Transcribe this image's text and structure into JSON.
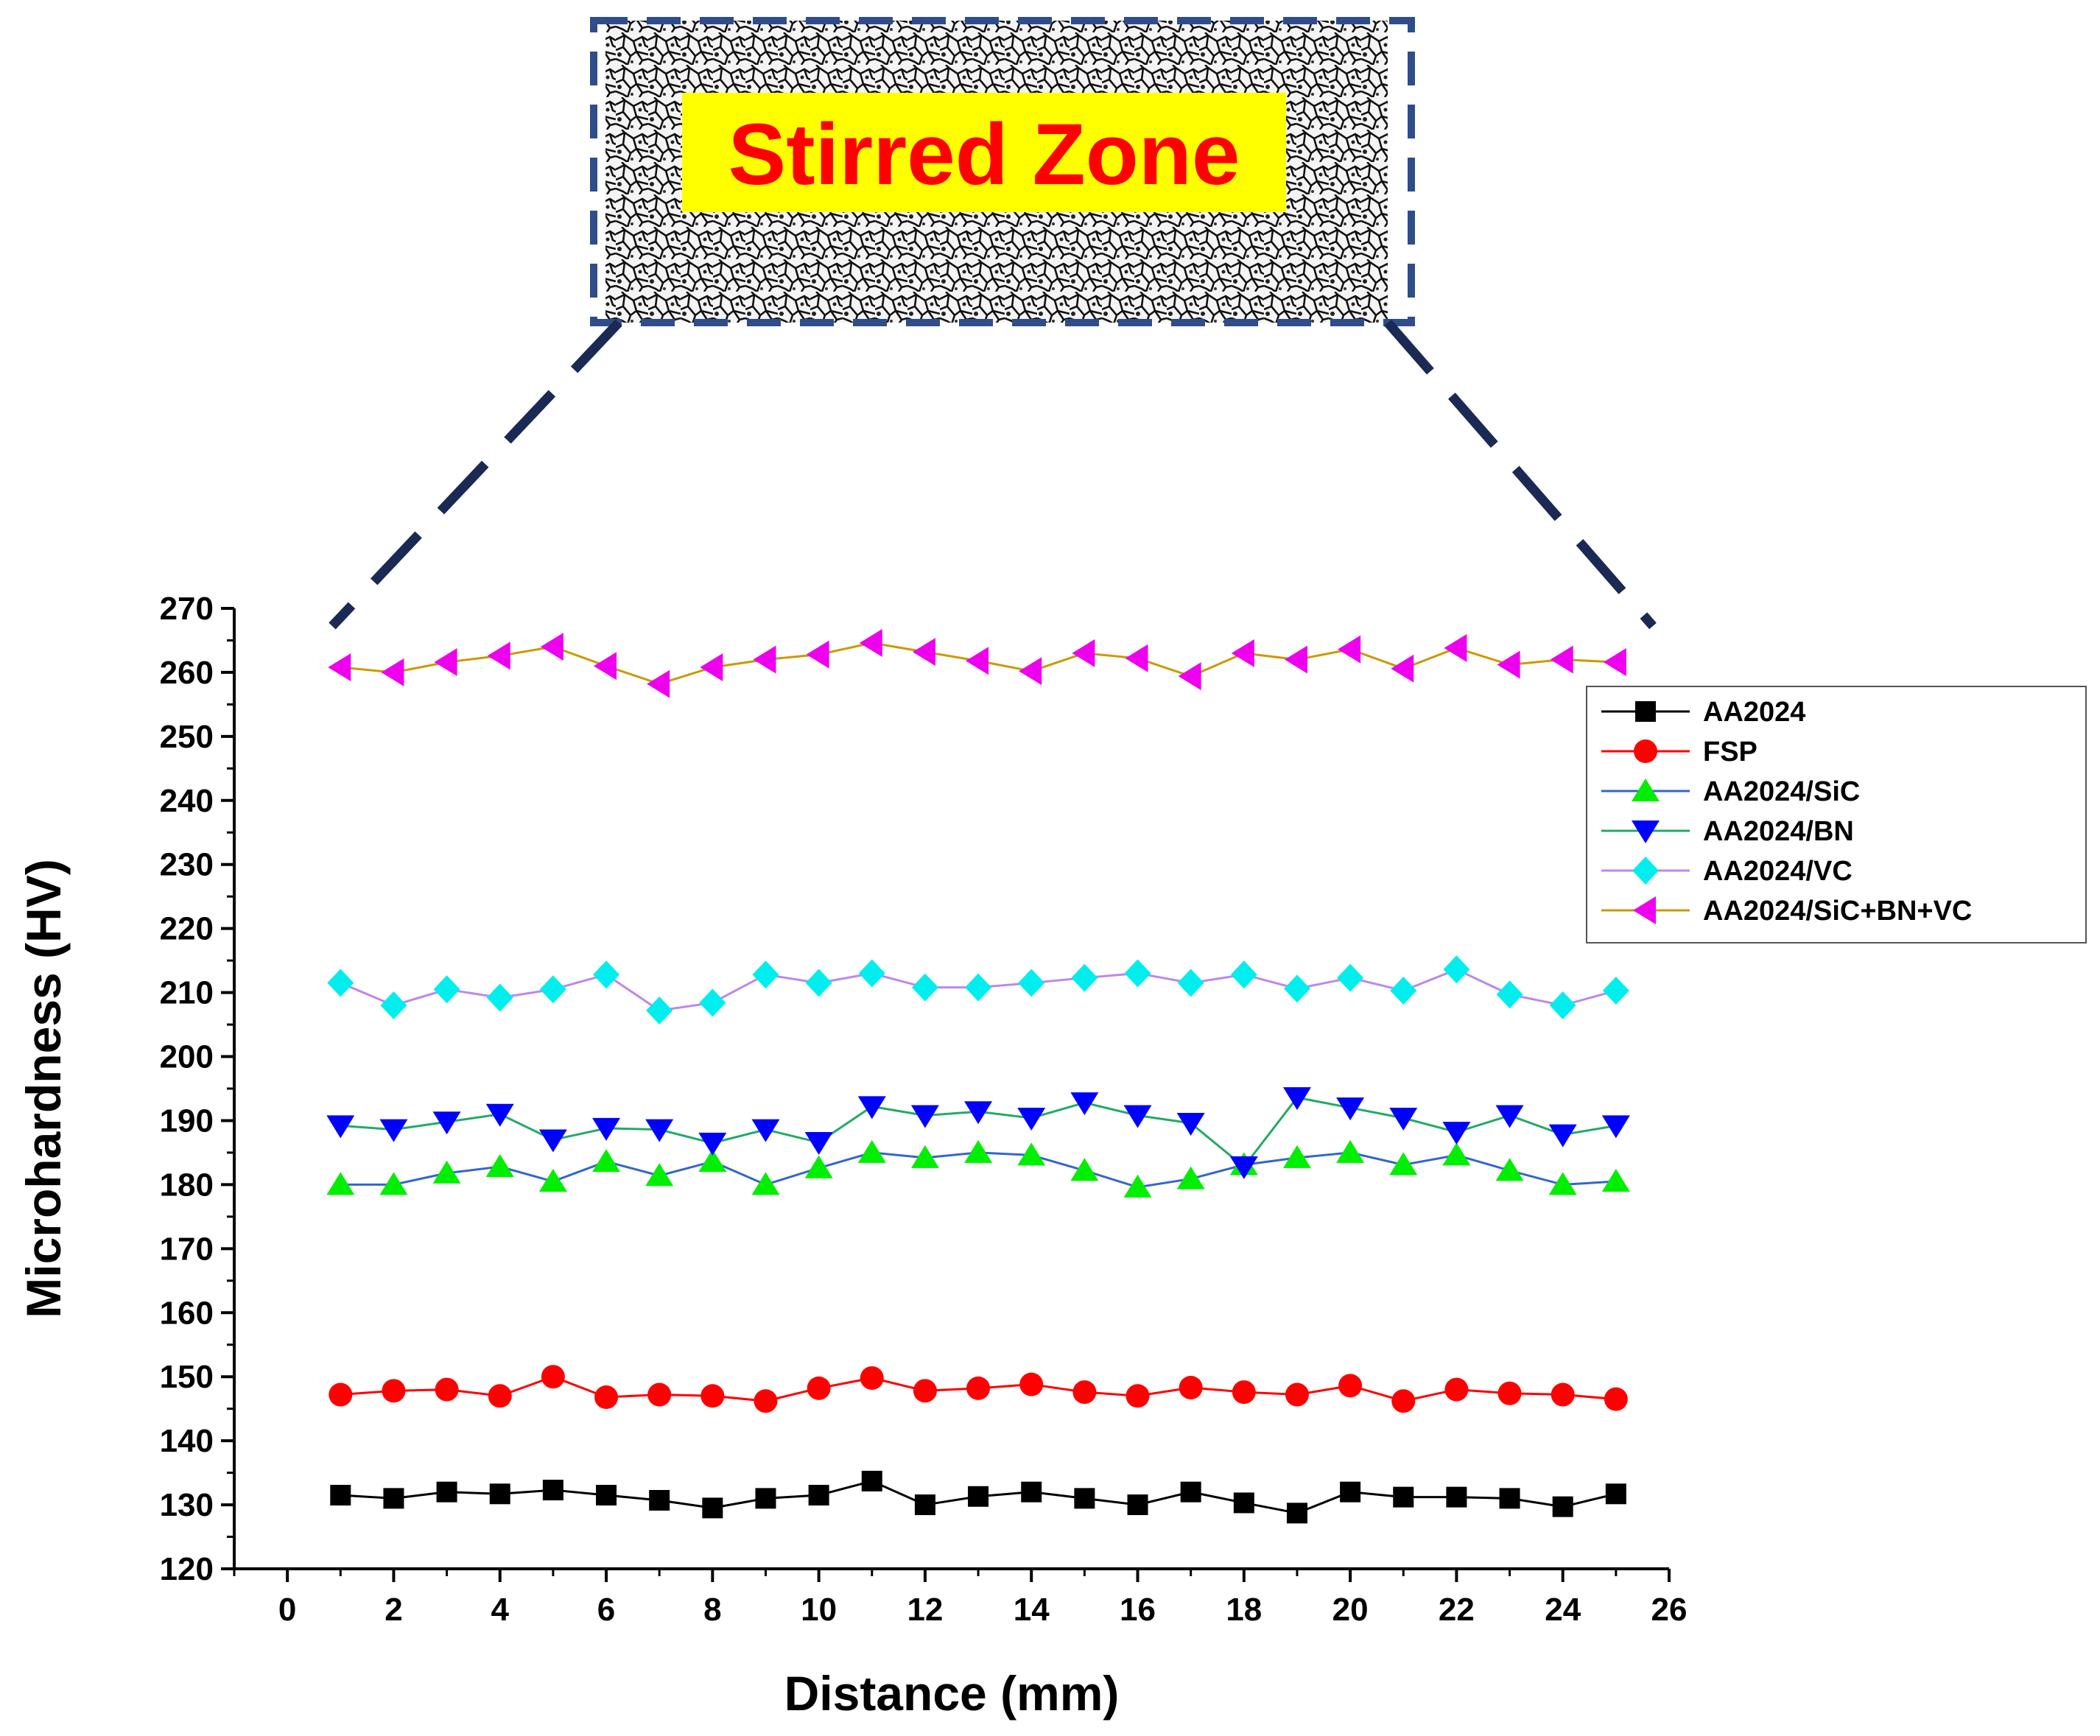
{
  "inset": {
    "label": "Stirred Zone",
    "label_color": "#ff0000",
    "label_background": "#ffff00",
    "frame_color": "#2e4d8a",
    "connector_color": "#1a2a55"
  },
  "chart_data": {
    "type": "line",
    "xlabel": "Distance (mm)",
    "ylabel": "Microhardness (HV)",
    "xlim": [
      -1,
      26
    ],
    "ylim": [
      120,
      270
    ],
    "xticks": [
      0,
      2,
      4,
      6,
      8,
      10,
      12,
      14,
      16,
      18,
      20,
      22,
      24,
      26
    ],
    "yticks": [
      120,
      130,
      140,
      150,
      160,
      170,
      180,
      190,
      200,
      210,
      220,
      230,
      240,
      250,
      260,
      270
    ],
    "legend_position": "right",
    "x": [
      1,
      2,
      3,
      4,
      5,
      6,
      7,
      8,
      9,
      10,
      11,
      12,
      13,
      14,
      15,
      16,
      17,
      18,
      19,
      20,
      21,
      22,
      23,
      24,
      25
    ],
    "series": [
      {
        "name": "AA2024",
        "marker": "square",
        "marker_color": "#000000",
        "line_color": "#000000",
        "values": [
          131.5,
          131,
          132,
          131.7,
          132.3,
          131.5,
          130.7,
          129.5,
          131,
          131.5,
          133.7,
          130,
          131.3,
          132,
          131,
          130,
          132,
          130.3,
          128.7,
          132,
          131.2,
          131.2,
          131,
          129.7,
          131.7
        ]
      },
      {
        "name": "FSP",
        "marker": "circle",
        "marker_color": "#ff0000",
        "line_color": "#ff0000",
        "values": [
          147.2,
          147.8,
          148,
          147,
          150,
          146.8,
          147.2,
          147,
          146.2,
          148.2,
          149.8,
          147.8,
          148.2,
          148.8,
          147.6,
          147,
          148.3,
          147.6,
          147.2,
          148.6,
          146.2,
          148,
          147.4,
          147.2,
          146.5
        ]
      },
      {
        "name": "AA2024/SiC",
        "marker": "triangle-up",
        "marker_color": "#00ee00",
        "line_color": "#3366cc",
        "values": [
          180,
          180,
          181.8,
          182.8,
          180.5,
          183.6,
          181.4,
          183.6,
          180,
          182.6,
          185,
          184.2,
          185,
          184.6,
          182.2,
          179.6,
          180.9,
          183.1,
          184.2,
          185,
          183.1,
          184.6,
          182.2,
          180,
          180.5
        ]
      },
      {
        "name": "AA2024/BN",
        "marker": "triangle-down",
        "marker_color": "#0000ff",
        "line_color": "#22aa66",
        "values": [
          189.2,
          188.6,
          189.8,
          191,
          187,
          188.8,
          188.6,
          186.5,
          188.6,
          186.6,
          192.2,
          190.8,
          191.4,
          190.4,
          192.8,
          190.8,
          189.6,
          182.8,
          193.6,
          192,
          190.4,
          188.2,
          190.8,
          187.8,
          189.2
        ]
      },
      {
        "name": "AA2024/VC",
        "marker": "diamond",
        "marker_color": "#00eeee",
        "line_color": "#bb88ee",
        "values": [
          211.5,
          208,
          210.5,
          209.2,
          210.5,
          212.8,
          207.2,
          208.4,
          212.8,
          211.5,
          213,
          210.8,
          210.8,
          211.5,
          212.3,
          213,
          211.5,
          212.8,
          210.6,
          212.3,
          210.3,
          213.6,
          209.7,
          208,
          210.3
        ]
      },
      {
        "name": "AA2024/SiC+BN+VC",
        "marker": "triangle-left",
        "marker_color": "#ee00ee",
        "line_color": "#cc9900",
        "values": [
          260.8,
          260,
          261.6,
          262.6,
          264,
          261,
          258.2,
          260.8,
          262,
          262.8,
          264.6,
          263.2,
          261.8,
          260.2,
          263,
          262.2,
          259.4,
          263,
          262,
          263.6,
          260.6,
          263.8,
          261.2,
          262,
          261.6
        ]
      }
    ]
  }
}
